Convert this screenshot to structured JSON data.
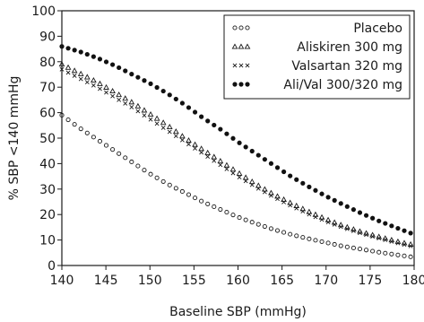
{
  "chart_data": {
    "type": "scatter",
    "title": "",
    "xlabel": "Baseline SBP (mmHg)",
    "ylabel": "% SBP <140 mmHg",
    "xlim": [
      140,
      180
    ],
    "ylim": [
      0,
      100
    ],
    "xticks": [
      140,
      145,
      150,
      155,
      160,
      165,
      170,
      175,
      180
    ],
    "yticks": [
      0,
      10,
      20,
      30,
      40,
      50,
      60,
      70,
      80,
      90,
      100
    ],
    "grid": false,
    "legend": "top-right",
    "series": [
      {
        "name": "Placebo",
        "marker": "circle-open",
        "x": [
          140,
          142,
          144,
          146,
          148,
          150,
          152,
          154,
          156,
          158,
          160,
          162,
          164,
          166,
          168,
          170,
          172,
          174,
          176,
          178,
          180
        ],
        "y": [
          59,
          54,
          49.5,
          45,
          40.5,
          36,
          32,
          28.5,
          25,
          22,
          19,
          16.5,
          14.2,
          12.2,
          10.5,
          9,
          7.5,
          6.4,
          5.2,
          4.2,
          3.2
        ]
      },
      {
        "name": "Aliskiren  300  mg",
        "marker": "triangle-open",
        "x": [
          140,
          142,
          144,
          146,
          148,
          150,
          152,
          154,
          156,
          158,
          160,
          162,
          164,
          166,
          168,
          170,
          172,
          174,
          176,
          178,
          180
        ],
        "y": [
          79,
          75.5,
          72,
          68,
          64,
          59.5,
          55,
          50,
          45.5,
          41,
          36.5,
          32,
          28,
          24.5,
          21.2,
          18.2,
          15.5,
          13.2,
          11.3,
          9.5,
          8
        ]
      },
      {
        "name": "Valsartan  320  mg",
        "marker": "x",
        "x": [
          140,
          142,
          144,
          146,
          148,
          150,
          152,
          154,
          156,
          158,
          160,
          162,
          164,
          166,
          168,
          170,
          172,
          174,
          176,
          178,
          180
        ],
        "y": [
          77,
          73.5,
          70,
          66,
          62,
          57.5,
          53,
          48.5,
          44,
          39.5,
          35,
          30.8,
          27,
          23.5,
          20.2,
          17.3,
          14.8,
          12.6,
          10.7,
          8.9,
          7.3
        ]
      },
      {
        "name": "Ali/Val  300/320  mg",
        "marker": "circle-filled",
        "x": [
          140,
          142,
          144,
          146,
          148,
          150,
          152,
          154,
          156,
          158,
          160,
          162,
          164,
          166,
          168,
          170,
          172,
          174,
          176,
          178,
          180
        ],
        "y": [
          86,
          84,
          81.5,
          78.5,
          75,
          71.5,
          67.5,
          63,
          58,
          53.5,
          48.5,
          44,
          39.5,
          35,
          31,
          27.2,
          23.8,
          20.5,
          17.5,
          14.8,
          12.2
        ]
      }
    ]
  }
}
